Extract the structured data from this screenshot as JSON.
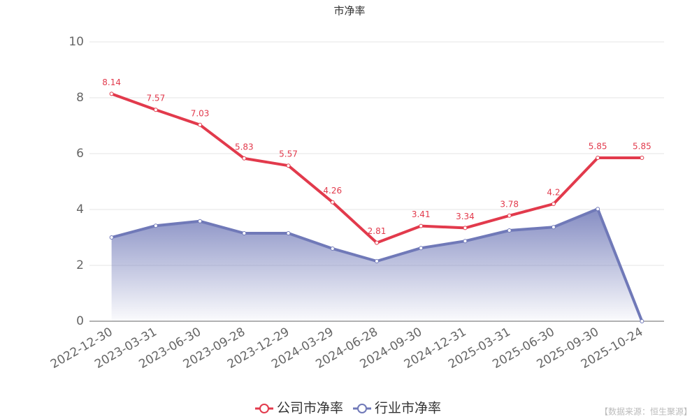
{
  "chart_data": {
    "type": "line",
    "title": "市净率",
    "categories": [
      "2022-12-30",
      "2023-03-31",
      "2023-06-30",
      "2023-09-28",
      "2023-12-29",
      "2024-03-29",
      "2024-06-28",
      "2024-09-30",
      "2024-12-31",
      "2025-03-31",
      "2025-06-30",
      "2025-09-30",
      "2025-10-24"
    ],
    "series": [
      {
        "name": "公司市净率",
        "color": "#e23a4c",
        "values": [
          8.14,
          7.57,
          7.03,
          5.83,
          5.57,
          4.26,
          2.81,
          3.41,
          3.34,
          3.78,
          4.2,
          5.85,
          5.85
        ],
        "show_labels": true
      },
      {
        "name": "行业市净率",
        "color": "#7079b8",
        "values": [
          3.0,
          3.42,
          3.58,
          3.15,
          3.15,
          2.6,
          2.15,
          2.62,
          2.87,
          3.25,
          3.37,
          4.02,
          0
        ],
        "area": true
      }
    ],
    "ylim": [
      0,
      10
    ],
    "yticks": [
      0,
      2,
      4,
      6,
      8,
      10
    ],
    "grid": true,
    "source": "【数据来源：恒生聚源】"
  }
}
